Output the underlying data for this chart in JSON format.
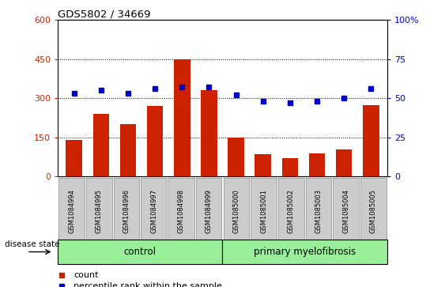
{
  "title": "GDS5802 / 34669",
  "categories": [
    "GSM1084994",
    "GSM1084995",
    "GSM1084996",
    "GSM1084997",
    "GSM1084998",
    "GSM1084999",
    "GSM1085000",
    "GSM1085001",
    "GSM1085002",
    "GSM1085003",
    "GSM1085004",
    "GSM1085005"
  ],
  "bar_values": [
    140,
    240,
    200,
    270,
    450,
    330,
    150,
    85,
    70,
    90,
    105,
    275
  ],
  "dot_values": [
    53,
    55,
    53,
    56,
    57,
    57,
    52,
    48,
    47,
    48,
    50,
    56
  ],
  "bar_color": "#cc2200",
  "dot_color": "#0000cc",
  "left_ylim": [
    0,
    600
  ],
  "right_ylim": [
    0,
    100
  ],
  "left_yticks": [
    0,
    150,
    300,
    450,
    600
  ],
  "right_yticks": [
    0,
    25,
    50,
    75,
    100
  ],
  "right_yticklabels": [
    "0",
    "25",
    "50",
    "75",
    "100%"
  ],
  "control_label": "control",
  "myelofibrosis_label": "primary myelofibrosis",
  "disease_state_label": "disease state",
  "legend_count_label": "count",
  "legend_percentile_label": "percentile rank within the sample",
  "group_box_color": "#99ee99",
  "xtick_bg_color": "#cccccc",
  "bar_width": 0.6,
  "n_control": 6,
  "n_total": 12
}
